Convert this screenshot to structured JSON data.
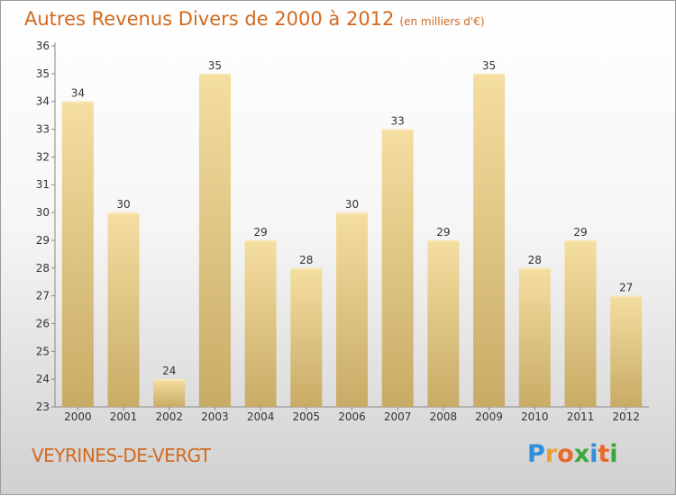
{
  "header": {
    "title": "Autres Revenus Divers de 2000 à 2012",
    "unit": "(en milliers d'€)"
  },
  "footer": {
    "town": "VEYRINES-DE-VERGT",
    "logo": [
      "P",
      "r",
      "o",
      "x",
      "i",
      "t",
      "i"
    ],
    "logo_colors": [
      "#2f8fd8",
      "#e8a13a",
      "#e86a2a",
      "#3aa83a",
      "#2f8fd8",
      "#e86a2a",
      "#3aa83a"
    ]
  },
  "colors": {
    "title": "#d2691e",
    "bar": "#e6cc86",
    "bar_light": "#f4dea0",
    "bar_dark": "#c8ab66"
  },
  "chart_data": {
    "type": "bar",
    "categories": [
      "2000",
      "2001",
      "2002",
      "2003",
      "2004",
      "2005",
      "2006",
      "2007",
      "2008",
      "2009",
      "2010",
      "2011",
      "2012"
    ],
    "values": [
      34,
      30,
      24,
      35,
      29,
      28,
      30,
      33,
      29,
      35,
      28,
      29,
      27
    ],
    "ylim": [
      23,
      36
    ],
    "yticks": [
      23,
      24,
      25,
      26,
      27,
      28,
      29,
      30,
      31,
      32,
      33,
      34,
      35,
      36
    ],
    "grid": false,
    "legend": "none"
  }
}
